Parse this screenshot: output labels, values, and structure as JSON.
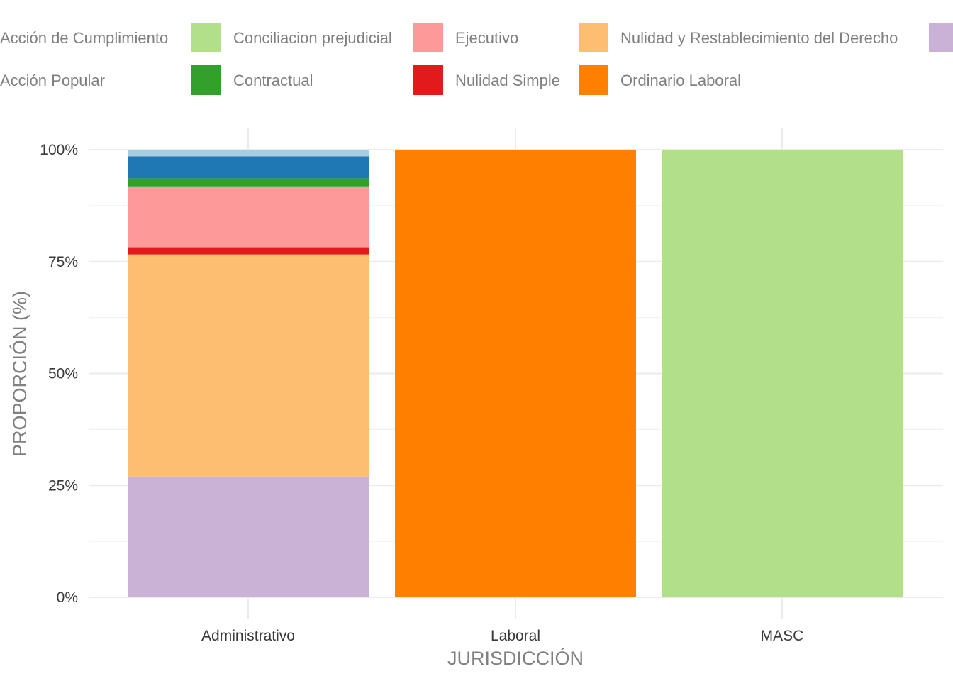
{
  "chart_data": {
    "type": "bar",
    "stacked": true,
    "title": "",
    "xlabel": "JURISDICCIÓN",
    "ylabel": "PROPORCIÓN (%)",
    "ylim": [
      0,
      100
    ],
    "y_ticks": [
      "0%",
      "25%",
      "50%",
      "75%",
      "100%"
    ],
    "y_tick_values": [
      0,
      25,
      50,
      75,
      100
    ],
    "categories": [
      "Administrativo",
      "Laboral",
      "MASC"
    ],
    "grid": true,
    "legend_position": "top",
    "legend": [
      {
        "name": "Acción de Cumplimiento",
        "color": null
      },
      {
        "name": "Acción Popular",
        "color": null
      },
      {
        "name": "Conciliacion prejudicial",
        "color": "#b2df8a"
      },
      {
        "name": "Contractual",
        "color": "#33a02c"
      },
      {
        "name": "Ejecutivo",
        "color": "#fb9a99"
      },
      {
        "name": "Nulidad Simple",
        "color": "#e31a1c"
      },
      {
        "name": "Nulidad y Restablecimiento del Derecho",
        "color": "#fdbf6f"
      },
      {
        "name": "Ordinario Laboral",
        "color": "#ff7f00"
      },
      {
        "name": "",
        "color": "#cab2d6"
      }
    ],
    "series": [
      {
        "color": "#cab2d6",
        "values": [
          27.0,
          0,
          0
        ]
      },
      {
        "color": "#fdbf6f",
        "values": [
          49.6,
          0,
          0
        ]
      },
      {
        "color": "#e31a1c",
        "values": [
          1.6,
          0,
          0
        ]
      },
      {
        "color": "#fb9a99",
        "values": [
          13.6,
          0,
          0
        ]
      },
      {
        "color": "#33a02c",
        "values": [
          1.8,
          0,
          0
        ]
      },
      {
        "color": "#1f78b4",
        "values": [
          4.9,
          0,
          0
        ]
      },
      {
        "color": "#a6cee3",
        "values": [
          1.5,
          0,
          0
        ]
      },
      {
        "color": "#ff7f00",
        "values": [
          0,
          100,
          0
        ]
      },
      {
        "color": "#b2df8a",
        "values": [
          0,
          0,
          100
        ]
      }
    ]
  }
}
